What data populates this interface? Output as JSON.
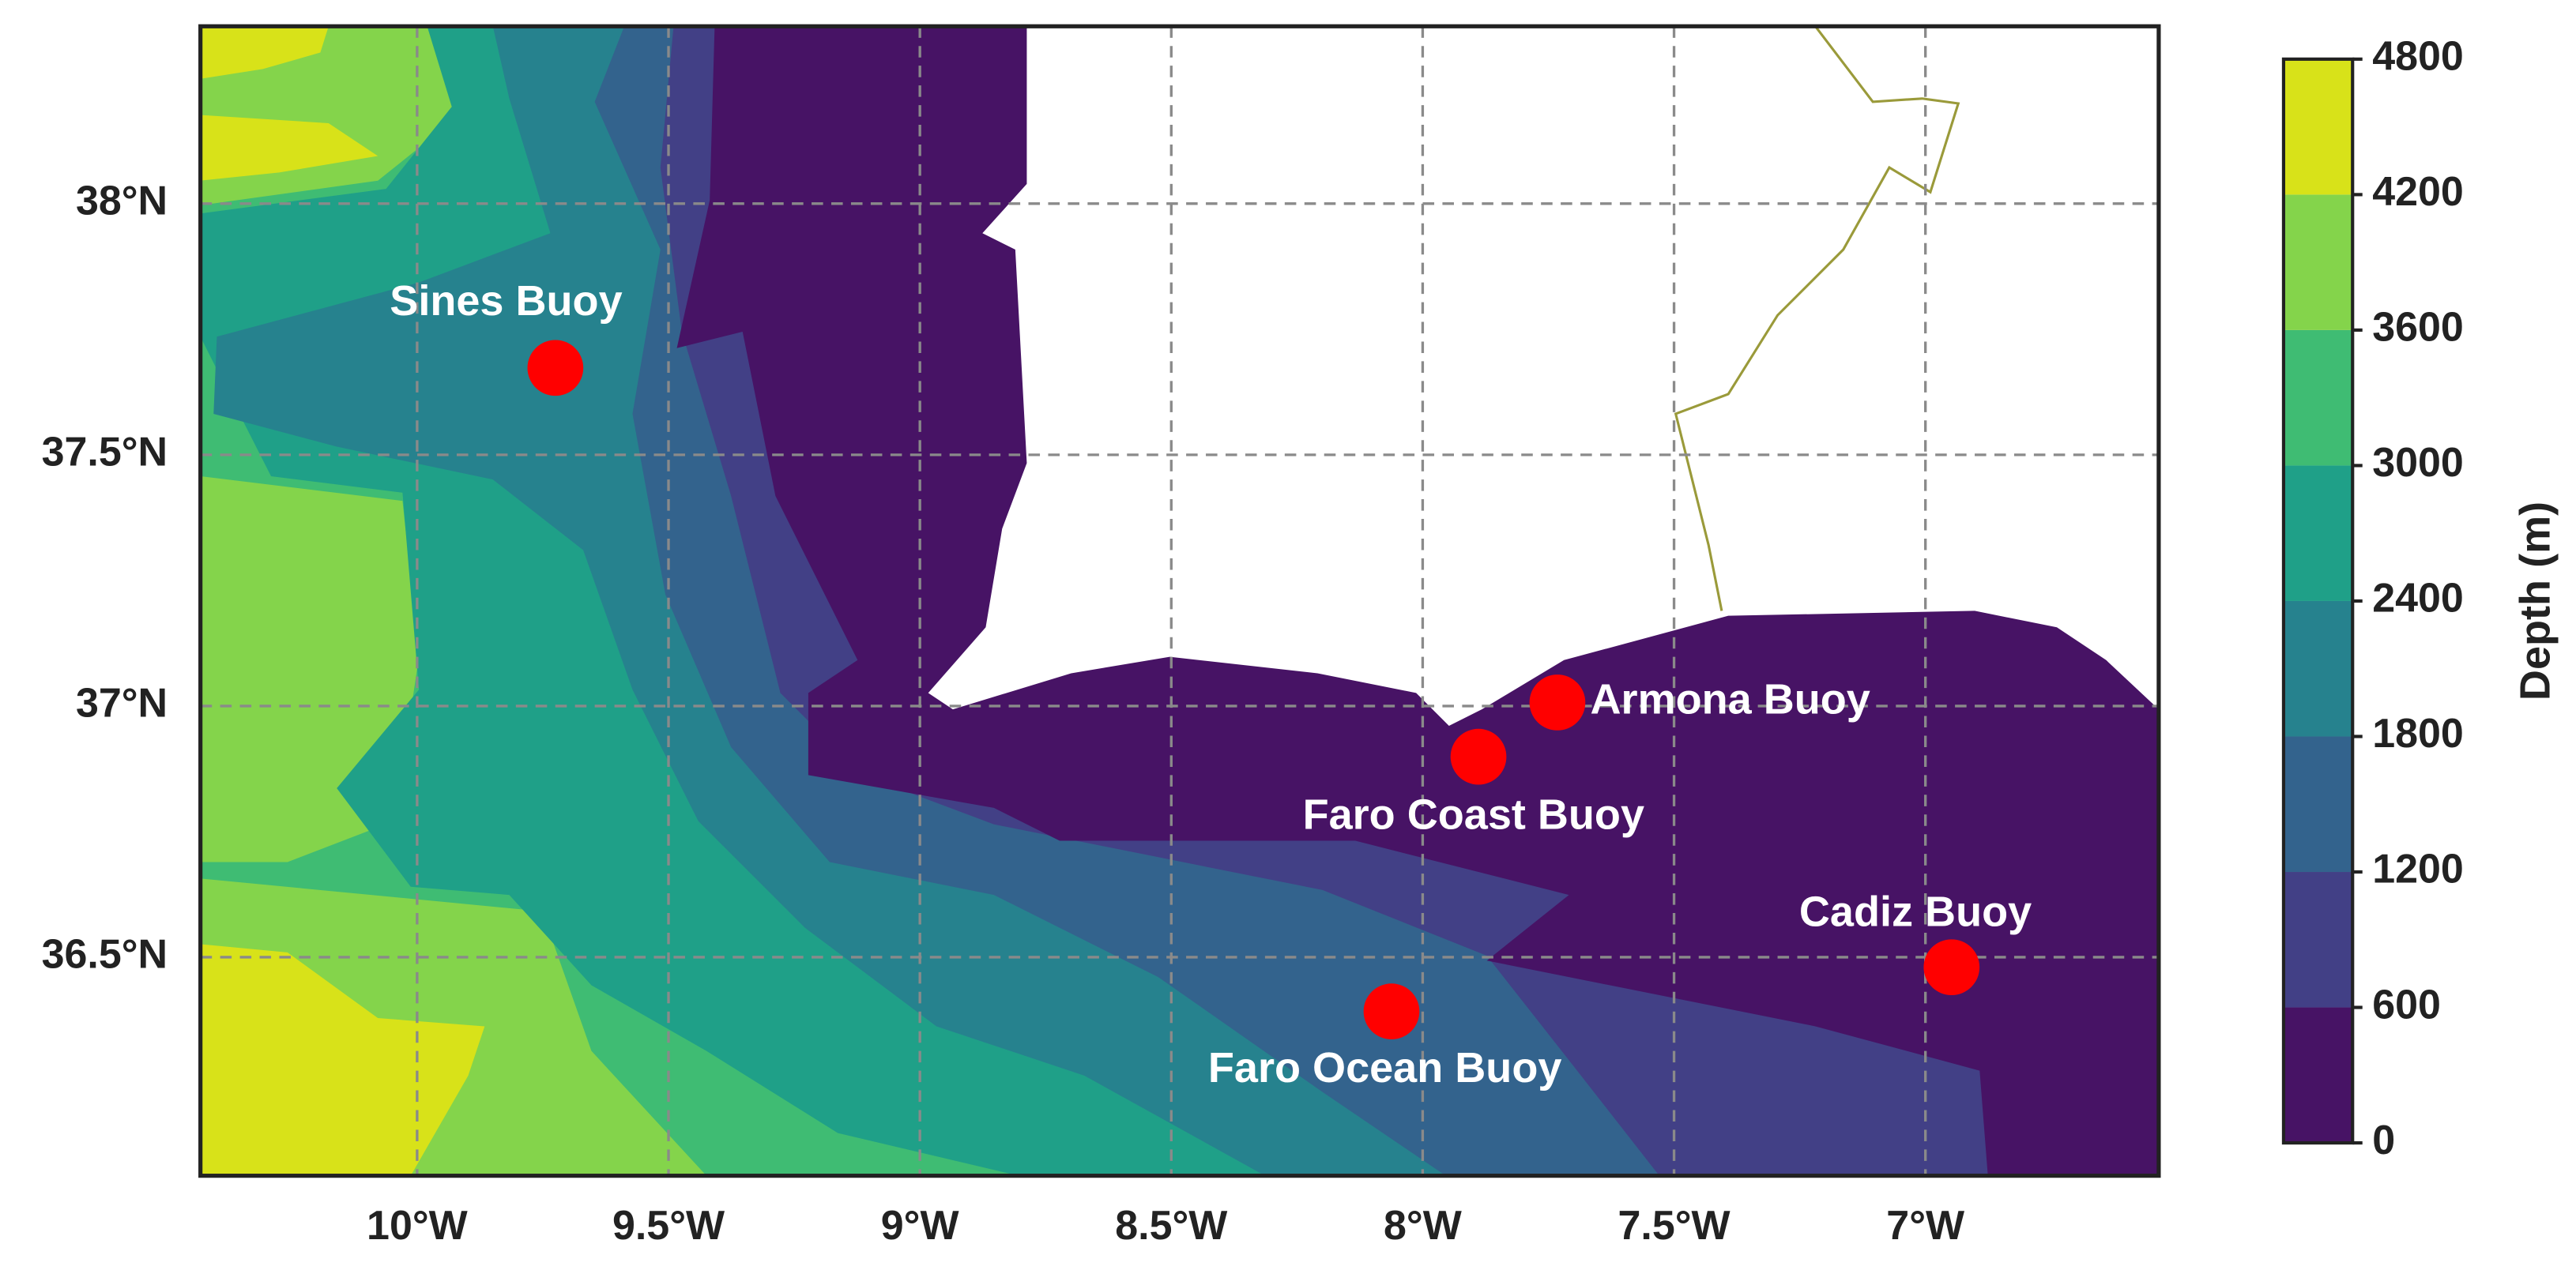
{
  "map": {
    "xlim": [
      -10.431,
      -6.536
    ],
    "ylim": [
      36.065,
      38.353
    ],
    "grid": true,
    "xticks": [
      {
        "value": -10,
        "label": "10°W"
      },
      {
        "value": -9.5,
        "label": "9.5°W"
      },
      {
        "value": -9,
        "label": "9°W"
      },
      {
        "value": -8.5,
        "label": "8.5°W"
      },
      {
        "value": -8,
        "label": "8°W"
      },
      {
        "value": -7.5,
        "label": "7.5°W"
      },
      {
        "value": -7,
        "label": "7°W"
      }
    ],
    "yticks": [
      {
        "value": 36.5,
        "label": "36.5°N"
      },
      {
        "value": 37,
        "label": "37°N"
      },
      {
        "value": 37.5,
        "label": "37.5°N"
      },
      {
        "value": 38,
        "label": "38°N"
      }
    ],
    "buoys": [
      {
        "name": "Sines Buoy",
        "lon": -9.725,
        "lat": 37.673,
        "color": "#ff0000"
      },
      {
        "name": "Armona Buoy",
        "lon": -7.732,
        "lat": 37.007,
        "color": "#ff0000"
      },
      {
        "name": "Faro Coast Buoy",
        "lon": -7.889,
        "lat": 36.899,
        "color": "#ff0000"
      },
      {
        "name": "Cadiz Buoy",
        "lon": -6.948,
        "lat": 36.48,
        "color": "#ff0000"
      },
      {
        "name": "Faro Ocean Buoy",
        "lon": -8.062,
        "lat": 36.392,
        "color": "#ff0000"
      }
    ],
    "colorbar": {
      "label": "Depth (m)",
      "ticks": [
        0,
        600,
        1200,
        1800,
        2400,
        3000,
        3600,
        4200,
        4800
      ],
      "colors": [
        "#471365",
        "#424086",
        "#33638d",
        "#26828e",
        "#1fa088",
        "#3fbc73",
        "#84d44b",
        "#d8e219"
      ]
    }
  }
}
